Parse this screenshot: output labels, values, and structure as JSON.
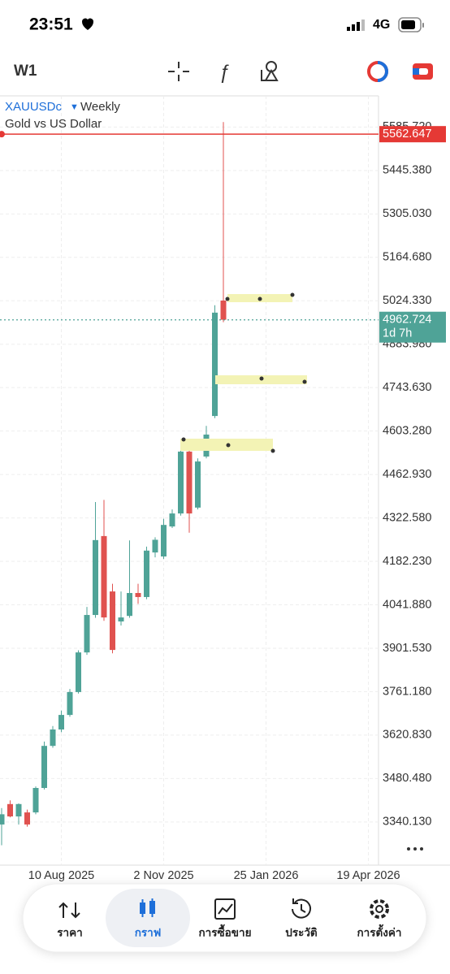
{
  "status_bar": {
    "time": "23:51",
    "network": "4G"
  },
  "toolbar": {
    "timeframe": "W1"
  },
  "chart_data": {
    "type": "candlestick",
    "symbol": "XAUUSDc",
    "period": "Weekly",
    "description": "Gold vs US Dollar",
    "categories": [
      null,
      null,
      null,
      null,
      null,
      null,
      null,
      "10 Aug 2025",
      null,
      null,
      null,
      null,
      null,
      null,
      null,
      null,
      null,
      null,
      null,
      "2 Nov 2025",
      null,
      null,
      null,
      null,
      null,
      null,
      null,
      null,
      null,
      null,
      null,
      "25 Jan 2026",
      null,
      null,
      null,
      null,
      null,
      null,
      null,
      null,
      null,
      null,
      null,
      "19 Apr 2026"
    ],
    "open": [
      3332,
      3398,
      3358,
      3371,
      3371,
      3450,
      3586,
      3639,
      3686,
      3760,
      3888,
      4009,
      4264,
      4085,
      3988,
      4006,
      4080,
      4067,
      4211,
      4198,
      4295,
      4337,
      4537,
      4356,
      4521,
      4652,
      5025,
      null,
      null,
      null,
      null,
      null,
      null,
      null,
      null,
      null,
      null,
      null,
      null,
      null,
      null,
      null,
      null,
      null
    ],
    "high": [
      3385,
      3410,
      3400,
      3380,
      3455,
      3600,
      3650,
      3700,
      3770,
      3895,
      4035,
      4374,
      4381,
      4110,
      4085,
      4250,
      4110,
      4230,
      4260,
      4320,
      4350,
      4545,
      4560,
      4515,
      4620,
      5010,
      5602,
      null,
      null,
      null,
      null,
      null,
      null,
      null,
      null,
      null,
      null,
      null,
      null,
      null,
      null,
      null,
      null,
      null
    ],
    "low": [
      3265,
      3355,
      3332,
      3325,
      3365,
      3445,
      3580,
      3630,
      3680,
      3755,
      3880,
      4000,
      3990,
      3885,
      3975,
      4000,
      4045,
      4060,
      4195,
      4190,
      4290,
      4330,
      4275,
      4350,
      4515,
      4645,
      4955,
      null,
      null,
      null,
      null,
      null,
      null,
      null,
      null,
      null,
      null,
      null,
      null,
      null,
      null,
      null,
      null,
      null
    ],
    "close": [
      3365,
      3358,
      3398,
      3332,
      3450,
      3586,
      3639,
      3686,
      3760,
      3888,
      4009,
      4251,
      4001,
      3896,
      4001,
      4080,
      4067,
      4217,
      4252,
      4300,
      4337,
      4537,
      4337,
      4505,
      4592,
      4986,
      4963,
      null,
      null,
      null,
      null,
      null,
      null,
      null,
      null,
      null,
      null,
      null,
      null,
      null,
      null,
      null,
      null,
      null
    ],
    "up_color": "#4fa397",
    "down_color": "#e0524f",
    "ylim": [
      3200.6,
      5686.5
    ],
    "yticks": [
      {
        "value": 5585.72,
        "label": "5585.720"
      },
      {
        "value": 5445.38,
        "label": "5445.380"
      },
      {
        "value": 5305.03,
        "label": "5305.030"
      },
      {
        "value": 5164.68,
        "label": "5164.680"
      },
      {
        "value": 5024.33,
        "label": "5024.330"
      },
      {
        "value": 4883.98,
        "label": "4883.980"
      },
      {
        "value": 4743.63,
        "label": "4743.630"
      },
      {
        "value": 4603.28,
        "label": "4603.280"
      },
      {
        "value": 4462.93,
        "label": "4462.930"
      },
      {
        "value": 4322.58,
        "label": "4322.580"
      },
      {
        "value": 4182.23,
        "label": "4182.230"
      },
      {
        "value": 4041.88,
        "label": "4041.880"
      },
      {
        "value": 3901.53,
        "label": "3901.530"
      },
      {
        "value": 3761.18,
        "label": "3761.180"
      },
      {
        "value": 3620.83,
        "label": "3620.830"
      },
      {
        "value": 3480.48,
        "label": "3480.480"
      },
      {
        "value": 3340.13,
        "label": "3340.130"
      }
    ],
    "grid": true,
    "price_lines": [
      {
        "value": 5562.647,
        "label": "5562.647",
        "color": "#e53935"
      },
      {
        "value": 4962.724,
        "label": "4962.724",
        "countdown": "1d 7h",
        "color": "#4fa397"
      }
    ]
  },
  "bottom_nav": {
    "active": 1,
    "items": [
      "ราคา",
      "กราฟ",
      "การซื้อขาย",
      "ประวัติ",
      "การตั้งค่า"
    ]
  }
}
